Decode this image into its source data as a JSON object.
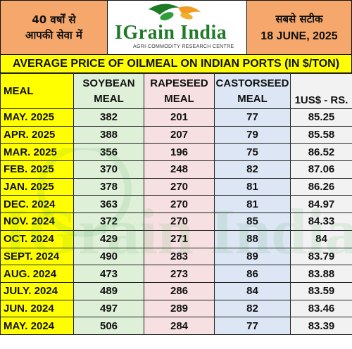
{
  "header": {
    "left_line1": "40 वर्षों से",
    "left_line2": "आपकी सेवा में",
    "right_tagline": "सबसे सटीक",
    "right_date": "18 JUNE, 2025",
    "colors": {
      "header_orange": "#f6a76b",
      "title_yellow": "#ffff00",
      "brand_green": "#1f7a28"
    }
  },
  "logo": {
    "name": "IGrain India",
    "subtitle": "AGRI-COMMODITY RESEARCH CENTRE",
    "icon": "wheat-grain-icon"
  },
  "table": {
    "title": "AVERAGE PRICE OF OILMEAL ON INDIAN PORTS (IN $/TON)",
    "columns": {
      "meal": "MEAL",
      "soybean_1": "SOYBEAN",
      "soybean_2": "MEAL",
      "rapeseed_1": "RAPESEED",
      "rapeseed_2": "MEAL",
      "castor_1": "CASTORSEED",
      "castor_2": "MEAL",
      "usd": "1US$ - RS."
    },
    "rows": [
      {
        "month": "MAY. 2025",
        "soybean": "382",
        "rapeseed": "201",
        "castorseed": "77",
        "usd_rs": "85.25"
      },
      {
        "month": "APR. 2025",
        "soybean": "388",
        "rapeseed": "207",
        "castorseed": "79",
        "usd_rs": "85.58"
      },
      {
        "month": "MAR. 2025",
        "soybean": "356",
        "rapeseed": "196",
        "castorseed": "75",
        "usd_rs": "86.52"
      },
      {
        "month": "FEB. 2025",
        "soybean": "370",
        "rapeseed": "248",
        "castorseed": "82",
        "usd_rs": "87.06"
      },
      {
        "month": "JAN. 2025",
        "soybean": "378",
        "rapeseed": "270",
        "castorseed": "81",
        "usd_rs": "86.26"
      },
      {
        "month": "DEC. 2024",
        "soybean": "363",
        "rapeseed": "270",
        "castorseed": "81",
        "usd_rs": "84.97"
      },
      {
        "month": "NOV. 2024",
        "soybean": "372",
        "rapeseed": "270",
        "castorseed": "85",
        "usd_rs": "84.33"
      },
      {
        "month": "OCT. 2024",
        "soybean": "429",
        "rapeseed": "271",
        "castorseed": "88",
        "usd_rs": "84"
      },
      {
        "month": "SEPT. 2024",
        "soybean": "490",
        "rapeseed": "283",
        "castorseed": "89",
        "usd_rs": "83.79"
      },
      {
        "month": "AUG. 2024",
        "soybean": "473",
        "rapeseed": "273",
        "castorseed": "86",
        "usd_rs": "83.88"
      },
      {
        "month": "JULY. 2024",
        "soybean": "489",
        "rapeseed": "286",
        "castorseed": "84",
        "usd_rs": "83.59"
      },
      {
        "month": "JUN. 2024",
        "soybean": "497",
        "rapeseed": "289",
        "castorseed": "82",
        "usd_rs": "83.46"
      },
      {
        "month": "MAY. 2024",
        "soybean": "506",
        "rapeseed": "284",
        "castorseed": "77",
        "usd_rs": "83.39"
      }
    ]
  },
  "watermark": {
    "text": "IGrain India"
  }
}
